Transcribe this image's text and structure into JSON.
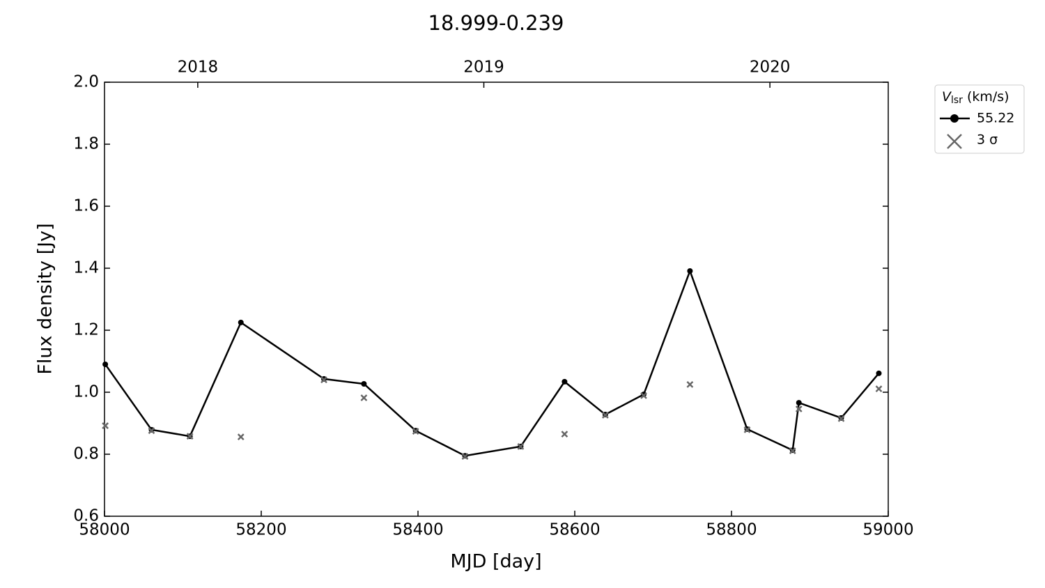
{
  "chart_data": {
    "type": "line",
    "title": "18.999-0.239",
    "x_label": "MJD [day]",
    "y_label": "Flux density [Jy]",
    "x": [
      58001,
      58060,
      58109,
      58174,
      58280,
      58331,
      58397,
      58460,
      58531,
      58587,
      58639,
      58688,
      58747,
      58820,
      58878,
      58886,
      58940,
      58988
    ],
    "series": [
      {
        "name": "55.22",
        "color": "#000000",
        "marker": "dot",
        "values": [
          1.09,
          0.879,
          0.858,
          1.225,
          1.043,
          1.027,
          0.876,
          0.795,
          0.825,
          1.034,
          0.928,
          0.993,
          1.391,
          0.881,
          0.813,
          0.966,
          0.917,
          1.061
        ]
      },
      {
        "name": "3 σ",
        "color": "#666666",
        "marker": "cross",
        "values": [
          0.892,
          0.876,
          0.858,
          0.856,
          1.04,
          0.982,
          0.874,
          0.793,
          0.825,
          0.865,
          0.926,
          0.989,
          1.025,
          0.879,
          0.811,
          0.946,
          0.915,
          1.011
        ]
      }
    ],
    "legend_title": {
      "symbol": "V",
      "subscript": "lsr",
      "unit": "(km/s)"
    },
    "legend_position": "outside-upper-right",
    "xlim": [
      58000,
      59000
    ],
    "xticks": [
      58000,
      58200,
      58400,
      58600,
      58800,
      59000
    ],
    "x2ticks": [
      {
        "value": 58119,
        "label": "2018"
      },
      {
        "value": 58484,
        "label": "2019"
      },
      {
        "value": 58849,
        "label": "2020"
      }
    ],
    "ylim": [
      0.6,
      2.0
    ],
    "yticks": [
      0.6,
      0.8,
      {
        "value": 1,
        "label": "1.0"
      },
      1.2,
      1.4,
      1.6,
      1.8,
      {
        "value": 2,
        "label": "2.0"
      }
    ]
  }
}
